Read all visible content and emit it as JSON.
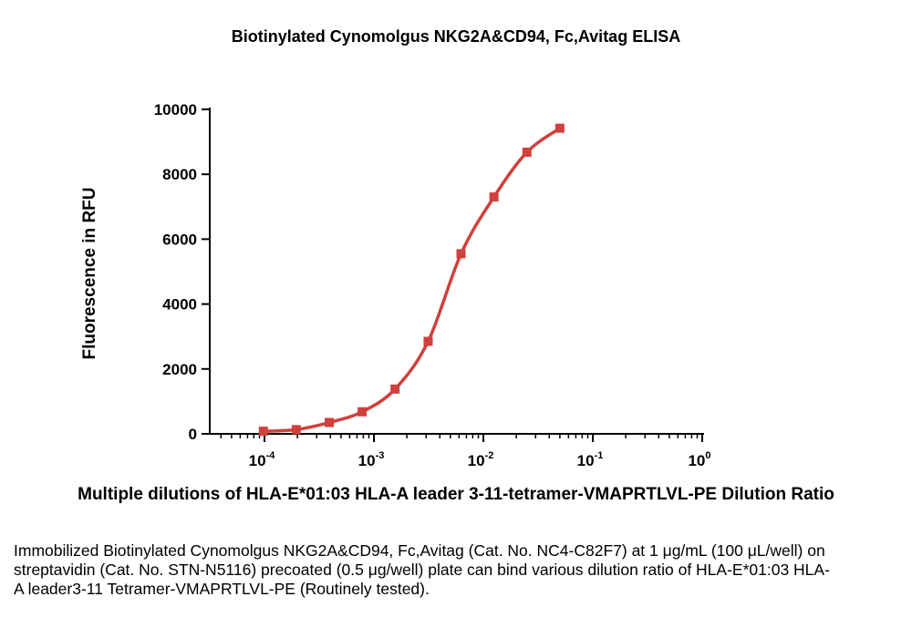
{
  "chart_data": {
    "type": "scatter",
    "title": "Biotinylated Cynomolgus NKG2A&CD94, Fc,Avitag ELISA",
    "xlabel": "Multiple dilutions of HLA-E*01:03 HLA-A leader 3-11-tetramer-VMAPRTLVL-PE Dilution Ratio",
    "ylabel": "Fluorescence in RFU",
    "x_scale": "log",
    "xlim": [
      5e-05,
      1
    ],
    "ylim": [
      0,
      10000
    ],
    "x_ticks": [
      {
        "value": 0.0001,
        "base": "10",
        "exp": "-4"
      },
      {
        "value": 0.001,
        "base": "10",
        "exp": "-3"
      },
      {
        "value": 0.01,
        "base": "10",
        "exp": "-2"
      },
      {
        "value": 0.1,
        "base": "10",
        "exp": "-1"
      },
      {
        "value": 1,
        "base": "10",
        "exp": "0"
      }
    ],
    "y_ticks": [
      0,
      2000,
      4000,
      6000,
      8000,
      10000
    ],
    "y_tick_labels": [
      "0",
      "2000",
      "4000",
      "6000",
      "8000",
      "10000"
    ],
    "grid": false,
    "legend": "none",
    "color": "#d0403c",
    "x": [
      9.77e-05,
      0.000195,
      0.000391,
      0.000781,
      0.00156,
      0.00313,
      0.00625,
      0.0125,
      0.025,
      0.05
    ],
    "y": [
      80,
      130,
      350,
      680,
      1380,
      2850,
      5550,
      7300,
      8680,
      9420
    ]
  },
  "caption": "Immobilized Biotinylated Cynomolgus NKG2A&CD94, Fc,Avitag (Cat. No. NC4-C82F7) at 1 μg/mL (100 μL/well) on streptavidin (Cat. No. STN-N5116) precoated (0.5 μg/well) plate can bind various dilution ratio of HLA-E*01:03 HLA-A leader3-11 Tetramer-VMAPRTLVL-PE (Routinely tested)."
}
